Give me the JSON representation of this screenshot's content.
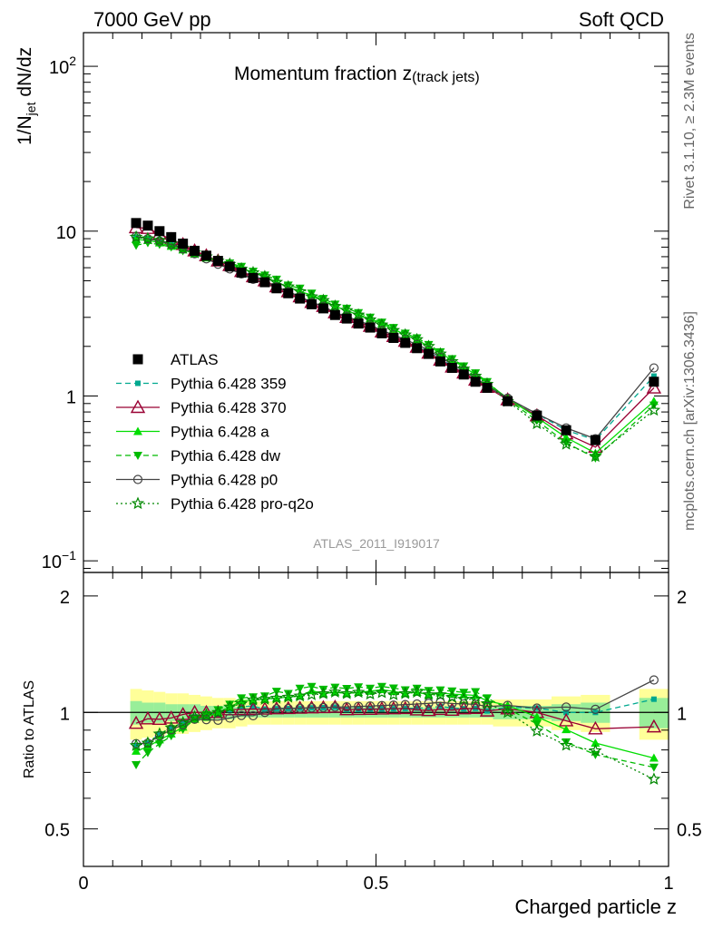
{
  "header": {
    "left": "7000 GeV pp",
    "right": "Soft QCD"
  },
  "side": {
    "rivet": "Rivet 3.1.10, ≥ 2.3M events",
    "mcplots": "mcplots.cern.ch [arXiv:1306.3436]"
  },
  "chart_data": {
    "type": "scatter",
    "title": "Momentum fraction z",
    "title_sub": "(track jets)",
    "watermark": "ATLAS_2011_I919017",
    "ylabel": "1/N",
    "ylabel_sub": "jet",
    "ylabel_tail": " dN/dz",
    "xlabel": "Charged particle z",
    "ratio_ylabel": "Ratio to ATLAS",
    "xlim": [
      0,
      1
    ],
    "ylim": [
      0.085,
      160
    ],
    "ratio_ylim": [
      0.4,
      2.3
    ],
    "yscale": "log",
    "ratio_yscale": "log",
    "x_ticks": [
      "0",
      "0.5",
      "1"
    ],
    "y_ticks": [
      {
        "base": "10",
        "exp": "−1"
      },
      {
        "base": "1",
        "exp": ""
      },
      {
        "base": "10",
        "exp": ""
      },
      {
        "base": "10",
        "exp": "2"
      }
    ],
    "ratio_ticks": [
      "0.5",
      "1",
      "2"
    ],
    "legend_position": "left-middle",
    "x": [
      0.09,
      0.11,
      0.13,
      0.15,
      0.17,
      0.19,
      0.21,
      0.23,
      0.25,
      0.27,
      0.29,
      0.31,
      0.33,
      0.35,
      0.37,
      0.39,
      0.41,
      0.43,
      0.45,
      0.47,
      0.49,
      0.51,
      0.53,
      0.55,
      0.57,
      0.59,
      0.61,
      0.63,
      0.65,
      0.67,
      0.69,
      0.725,
      0.775,
      0.825,
      0.875,
      0.975
    ],
    "atlas": {
      "name": "ATLAS",
      "values": [
        11.2,
        10.8,
        10.0,
        9.2,
        8.4,
        7.6,
        7.1,
        6.6,
        6.1,
        5.6,
        5.2,
        4.9,
        4.5,
        4.2,
        3.9,
        3.6,
        3.4,
        3.1,
        2.95,
        2.75,
        2.6,
        2.4,
        2.25,
        2.1,
        1.95,
        1.8,
        1.62,
        1.48,
        1.35,
        1.22,
        1.12,
        0.93,
        0.76,
        0.62,
        0.54,
        1.22
      ],
      "color": "#000000"
    },
    "bands": [
      {
        "x0": 0.08,
        "x1": 0.1,
        "inner": [
          0.93,
          1.07
        ],
        "outer": [
          0.85,
          1.15
        ]
      },
      {
        "x0": 0.1,
        "x1": 0.12,
        "inner": [
          0.94,
          1.06
        ],
        "outer": [
          0.86,
          1.14
        ]
      },
      {
        "x0": 0.12,
        "x1": 0.14,
        "inner": [
          0.94,
          1.06
        ],
        "outer": [
          0.87,
          1.13
        ]
      },
      {
        "x0": 0.14,
        "x1": 0.16,
        "inner": [
          0.95,
          1.05
        ],
        "outer": [
          0.88,
          1.12
        ]
      },
      {
        "x0": 0.16,
        "x1": 0.18,
        "inner": [
          0.95,
          1.05
        ],
        "outer": [
          0.88,
          1.12
        ]
      },
      {
        "x0": 0.18,
        "x1": 0.2,
        "inner": [
          0.95,
          1.05
        ],
        "outer": [
          0.89,
          1.11
        ]
      },
      {
        "x0": 0.2,
        "x1": 0.22,
        "inner": [
          0.96,
          1.04
        ],
        "outer": [
          0.9,
          1.1
        ]
      },
      {
        "x0": 0.22,
        "x1": 0.24,
        "inner": [
          0.96,
          1.04
        ],
        "outer": [
          0.91,
          1.09
        ]
      },
      {
        "x0": 0.24,
        "x1": 0.26,
        "inner": [
          0.96,
          1.04
        ],
        "outer": [
          0.91,
          1.09
        ]
      },
      {
        "x0": 0.26,
        "x1": 0.28,
        "inner": [
          0.97,
          1.03
        ],
        "outer": [
          0.92,
          1.08
        ]
      },
      {
        "x0": 0.28,
        "x1": 0.3,
        "inner": [
          0.97,
          1.03
        ],
        "outer": [
          0.93,
          1.07
        ]
      },
      {
        "x0": 0.3,
        "x1": 0.32,
        "inner": [
          0.97,
          1.03
        ],
        "outer": [
          0.93,
          1.07
        ]
      },
      {
        "x0": 0.32,
        "x1": 0.34,
        "inner": [
          0.97,
          1.03
        ],
        "outer": [
          0.93,
          1.07
        ]
      },
      {
        "x0": 0.34,
        "x1": 0.36,
        "inner": [
          0.97,
          1.03
        ],
        "outer": [
          0.93,
          1.07
        ]
      },
      {
        "x0": 0.36,
        "x1": 0.38,
        "inner": [
          0.97,
          1.03
        ],
        "outer": [
          0.93,
          1.07
        ]
      },
      {
        "x0": 0.38,
        "x1": 0.4,
        "inner": [
          0.97,
          1.03
        ],
        "outer": [
          0.93,
          1.07
        ]
      },
      {
        "x0": 0.4,
        "x1": 0.42,
        "inner": [
          0.97,
          1.03
        ],
        "outer": [
          0.93,
          1.07
        ]
      },
      {
        "x0": 0.42,
        "x1": 0.44,
        "inner": [
          0.97,
          1.03
        ],
        "outer": [
          0.93,
          1.07
        ]
      },
      {
        "x0": 0.44,
        "x1": 0.46,
        "inner": [
          0.97,
          1.03
        ],
        "outer": [
          0.93,
          1.07
        ]
      },
      {
        "x0": 0.46,
        "x1": 0.48,
        "inner": [
          0.97,
          1.03
        ],
        "outer": [
          0.93,
          1.07
        ]
      },
      {
        "x0": 0.48,
        "x1": 0.5,
        "inner": [
          0.97,
          1.03
        ],
        "outer": [
          0.93,
          1.07
        ]
      },
      {
        "x0": 0.5,
        "x1": 0.52,
        "inner": [
          0.97,
          1.03
        ],
        "outer": [
          0.93,
          1.07
        ]
      },
      {
        "x0": 0.52,
        "x1": 0.54,
        "inner": [
          0.97,
          1.03
        ],
        "outer": [
          0.93,
          1.07
        ]
      },
      {
        "x0": 0.54,
        "x1": 0.56,
        "inner": [
          0.97,
          1.03
        ],
        "outer": [
          0.93,
          1.07
        ]
      },
      {
        "x0": 0.56,
        "x1": 0.58,
        "inner": [
          0.97,
          1.03
        ],
        "outer": [
          0.93,
          1.07
        ]
      },
      {
        "x0": 0.58,
        "x1": 0.6,
        "inner": [
          0.97,
          1.03
        ],
        "outer": [
          0.93,
          1.07
        ]
      },
      {
        "x0": 0.6,
        "x1": 0.62,
        "inner": [
          0.97,
          1.03
        ],
        "outer": [
          0.93,
          1.07
        ]
      },
      {
        "x0": 0.62,
        "x1": 0.64,
        "inner": [
          0.97,
          1.03
        ],
        "outer": [
          0.93,
          1.07
        ]
      },
      {
        "x0": 0.64,
        "x1": 0.66,
        "inner": [
          0.97,
          1.03
        ],
        "outer": [
          0.93,
          1.07
        ]
      },
      {
        "x0": 0.66,
        "x1": 0.68,
        "inner": [
          0.97,
          1.03
        ],
        "outer": [
          0.93,
          1.07
        ]
      },
      {
        "x0": 0.68,
        "x1": 0.7,
        "inner": [
          0.97,
          1.03
        ],
        "outer": [
          0.93,
          1.07
        ]
      },
      {
        "x0": 0.7,
        "x1": 0.75,
        "inner": [
          0.96,
          1.04
        ],
        "outer": [
          0.92,
          1.08
        ]
      },
      {
        "x0": 0.75,
        "x1": 0.8,
        "inner": [
          0.96,
          1.04
        ],
        "outer": [
          0.92,
          1.08
        ]
      },
      {
        "x0": 0.8,
        "x1": 0.85,
        "inner": [
          0.95,
          1.05
        ],
        "outer": [
          0.9,
          1.1
        ]
      },
      {
        "x0": 0.85,
        "x1": 0.9,
        "inner": [
          0.94,
          1.06
        ],
        "outer": [
          0.89,
          1.11
        ]
      },
      {
        "x0": 0.95,
        "x1": 1.0,
        "inner": [
          0.91,
          1.09
        ],
        "outer": [
          0.85,
          1.15
        ]
      }
    ],
    "series": [
      {
        "name": "Pythia 6.428 359",
        "color": "#00a88f",
        "marker": "square-small",
        "dash": "6,4",
        "values": [
          9.2,
          9.0,
          8.8,
          8.4,
          7.9,
          7.4,
          7.0,
          6.6,
          6.2,
          5.8,
          5.4,
          5.0,
          4.6,
          4.3,
          4.0,
          3.7,
          3.5,
          3.2,
          3.0,
          2.8,
          2.65,
          2.45,
          2.3,
          2.15,
          2.0,
          1.85,
          1.68,
          1.52,
          1.38,
          1.25,
          1.13,
          0.96,
          0.78,
          0.62,
          0.54,
          1.32
        ]
      },
      {
        "name": "Pythia 6.428 370",
        "color": "#990033",
        "marker": "triangle-open",
        "dash": "",
        "values": [
          10.5,
          10.4,
          9.6,
          8.9,
          8.3,
          7.6,
          7.1,
          6.6,
          6.2,
          5.7,
          5.3,
          5.0,
          4.6,
          4.3,
          4.0,
          3.7,
          3.5,
          3.2,
          3.0,
          2.8,
          2.65,
          2.45,
          2.3,
          2.15,
          1.98,
          1.82,
          1.65,
          1.5,
          1.38,
          1.25,
          1.13,
          0.95,
          0.76,
          0.59,
          0.49,
          1.12
        ]
      },
      {
        "name": "Pythia 6.428 a",
        "color": "#00dd00",
        "marker": "triangle-filled",
        "dash": "",
        "values": [
          8.9,
          8.8,
          8.5,
          8.1,
          7.7,
          7.3,
          6.9,
          6.6,
          6.3,
          6.0,
          5.6,
          5.3,
          4.9,
          4.6,
          4.3,
          4.1,
          3.8,
          3.5,
          3.3,
          3.1,
          2.95,
          2.75,
          2.55,
          2.35,
          2.2,
          2.0,
          1.82,
          1.65,
          1.5,
          1.35,
          1.2,
          0.97,
          0.74,
          0.56,
          0.45,
          0.93
        ]
      },
      {
        "name": "Pythia 6.428 dw",
        "color": "#00bb00",
        "marker": "triangle-down-filled",
        "dash": "6,4",
        "values": [
          8.2,
          8.5,
          8.3,
          8.0,
          7.6,
          7.3,
          7.0,
          6.7,
          6.4,
          6.1,
          5.7,
          5.4,
          5.1,
          4.7,
          4.5,
          4.2,
          3.9,
          3.6,
          3.4,
          3.2,
          3.0,
          2.8,
          2.6,
          2.4,
          2.25,
          2.05,
          1.85,
          1.68,
          1.52,
          1.38,
          1.22,
          0.95,
          0.71,
          0.52,
          0.42,
          0.88
        ]
      },
      {
        "name": "Pythia 6.428 p0",
        "color": "#444444",
        "marker": "circle-open",
        "dash": "",
        "values": [
          9.3,
          9.0,
          8.7,
          8.3,
          7.8,
          7.3,
          6.8,
          6.3,
          5.9,
          5.5,
          5.1,
          4.9,
          4.6,
          4.3,
          4.0,
          3.7,
          3.5,
          3.2,
          3.05,
          2.85,
          2.7,
          2.5,
          2.35,
          2.2,
          2.05,
          1.9,
          1.72,
          1.56,
          1.42,
          1.28,
          1.16,
          0.97,
          0.78,
          0.64,
          0.55,
          1.48
        ]
      },
      {
        "name": "Pythia 6.428 pro-q2o",
        "color": "#008800",
        "marker": "star-open",
        "dash": "2,3",
        "values": [
          9.2,
          9.0,
          8.8,
          8.4,
          7.9,
          7.4,
          7.0,
          6.6,
          6.3,
          5.9,
          5.6,
          5.3,
          4.9,
          4.6,
          4.3,
          4.0,
          3.8,
          3.5,
          3.3,
          3.1,
          2.9,
          2.7,
          2.5,
          2.35,
          2.2,
          2.0,
          1.8,
          1.62,
          1.46,
          1.32,
          1.18,
          0.93,
          0.68,
          0.51,
          0.43,
          0.82
        ]
      }
    ]
  }
}
